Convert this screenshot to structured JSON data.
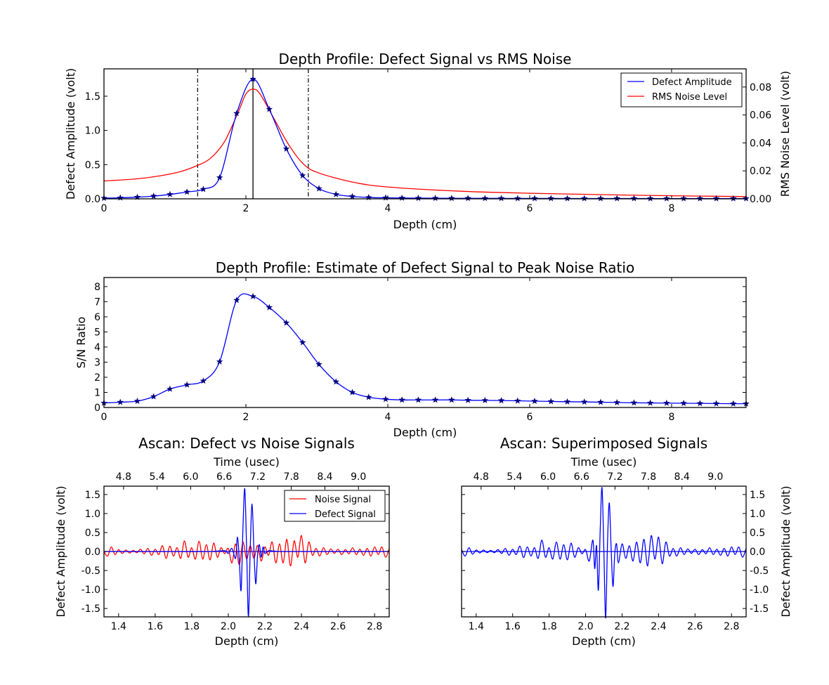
{
  "chart_data": [
    {
      "type": "line",
      "title": "Depth Profile: Defect Signal vs RMS Noise",
      "xlabel": "Depth (cm)",
      "ylabel": "Defect Amplitude (volt)",
      "y2label": "RMS Noise Level (volt)",
      "xlim": [
        0,
        9.05
      ],
      "ylim": [
        0,
        1.9
      ],
      "y2lim": [
        0,
        0.093
      ],
      "xticks": [
        0,
        2,
        4,
        6,
        8
      ],
      "yticks": [
        0.0,
        0.5,
        1.0,
        1.5
      ],
      "y2ticks": [
        0.0,
        0.02,
        0.04,
        0.06,
        0.08
      ],
      "legend_position": "top-right",
      "grid": false,
      "vertical_lines": {
        "solid": [
          2.1
        ],
        "dashdot": [
          1.32,
          2.88
        ]
      },
      "series": [
        {
          "name": "Defect Amplitude",
          "color": "#0000ff",
          "axis": "left",
          "marker": "star",
          "x": [
            0.0,
            0.23,
            0.47,
            0.7,
            0.93,
            1.17,
            1.4,
            1.63,
            1.87,
            2.1,
            2.33,
            2.57,
            2.8,
            3.03,
            3.27,
            3.5,
            3.73,
            3.97,
            4.2,
            4.43,
            4.67,
            4.9,
            5.13,
            5.37,
            5.6,
            5.83,
            6.07,
            6.3,
            6.53,
            6.77,
            7.0,
            7.23,
            7.47,
            7.7,
            7.93,
            8.17,
            8.4,
            8.63,
            8.87,
            9.05
          ],
          "y": [
            0.01,
            0.015,
            0.025,
            0.04,
            0.065,
            0.1,
            0.14,
            0.31,
            1.25,
            1.75,
            1.31,
            0.73,
            0.34,
            0.15,
            0.065,
            0.035,
            0.02,
            0.015,
            0.012,
            0.01,
            0.009,
            0.008,
            0.008,
            0.007,
            0.007,
            0.006,
            0.006,
            0.006,
            0.005,
            0.005,
            0.005,
            0.005,
            0.005,
            0.004,
            0.004,
            0.004,
            0.004,
            0.004,
            0.004,
            0.004
          ]
        },
        {
          "name": "RMS Noise Level",
          "color": "#ff0000",
          "axis": "right",
          "x": [
            0.0,
            0.5,
            1.0,
            1.3,
            1.5,
            1.7,
            1.9,
            2.0,
            2.1,
            2.2,
            2.4,
            2.6,
            2.8,
            3.0,
            3.5,
            4.0,
            5.0,
            6.0,
            7.0,
            8.0,
            9.05
          ],
          "y": [
            0.0128,
            0.0145,
            0.0185,
            0.0235,
            0.029,
            0.041,
            0.063,
            0.075,
            0.0785,
            0.075,
            0.057,
            0.039,
            0.0255,
            0.019,
            0.012,
            0.0085,
            0.0055,
            0.004,
            0.003,
            0.0022,
            0.0016
          ]
        }
      ]
    },
    {
      "type": "line",
      "title": "Depth Profile: Estimate of Defect Signal to Peak Noise Ratio",
      "xlabel": "Depth (cm)",
      "ylabel": "S/N Ratio",
      "xlim": [
        0,
        9.05
      ],
      "ylim": [
        0,
        8.6
      ],
      "xticks": [
        0,
        2,
        4,
        6,
        8
      ],
      "yticks": [
        0,
        1,
        2,
        3,
        4,
        5,
        6,
        7,
        8
      ],
      "grid": false,
      "series": [
        {
          "color": "#0000ff",
          "marker": "star",
          "x": [
            0.0,
            0.23,
            0.47,
            0.7,
            0.93,
            1.17,
            1.4,
            1.63,
            1.87,
            2.1,
            2.33,
            2.57,
            2.8,
            3.03,
            3.27,
            3.5,
            3.73,
            3.97,
            4.2,
            4.43,
            4.67,
            4.9,
            5.13,
            5.37,
            5.6,
            5.83,
            6.07,
            6.3,
            6.53,
            6.77,
            7.0,
            7.23,
            7.47,
            7.7,
            7.93,
            8.17,
            8.4,
            8.63,
            8.87,
            9.05
          ],
          "y": [
            0.3,
            0.35,
            0.42,
            0.72,
            1.22,
            1.5,
            1.76,
            3.03,
            7.1,
            7.35,
            6.62,
            5.6,
            4.3,
            2.85,
            1.7,
            1.0,
            0.68,
            0.55,
            0.5,
            0.5,
            0.5,
            0.5,
            0.48,
            0.47,
            0.46,
            0.44,
            0.42,
            0.4,
            0.38,
            0.37,
            0.35,
            0.33,
            0.31,
            0.3,
            0.29,
            0.28,
            0.27,
            0.26,
            0.25,
            0.25
          ]
        }
      ]
    },
    {
      "type": "line",
      "title": "Ascan: Defect vs Noise Signals",
      "xlabel": "Depth (cm)",
      "x2label": "Time (usec)",
      "ylabel": "Defect Amplitude (volt)",
      "xlim": [
        1.32,
        2.88
      ],
      "ylim": [
        -1.72,
        1.72
      ],
      "xticks": [
        1.4,
        1.6,
        1.8,
        2.0,
        2.2,
        2.4,
        2.6,
        2.8
      ],
      "x2ticks": [
        4.8,
        5.4,
        6.0,
        6.6,
        7.2,
        7.8,
        8.4,
        9.0
      ],
      "yticks": [
        -1.5,
        -1.0,
        -0.5,
        0.0,
        0.5,
        1.0,
        1.5
      ],
      "legend_position": "top-right",
      "series": [
        {
          "name": "Noise Signal",
          "color": "#ff0000",
          "x": [
            1.32,
            1.34,
            1.36,
            1.38,
            1.4,
            1.42,
            1.44,
            1.46,
            1.48,
            1.5,
            1.52,
            1.54,
            1.56,
            1.58,
            1.6,
            1.62,
            1.64,
            1.66,
            1.68,
            1.7,
            1.72,
            1.74,
            1.76,
            1.78,
            1.8,
            1.82,
            1.84,
            1.86,
            1.88,
            1.9,
            1.92,
            1.94,
            1.96,
            1.98,
            2.0,
            2.02,
            2.04,
            2.06,
            2.08,
            2.1,
            2.12,
            2.14,
            2.16,
            2.18,
            2.2,
            2.22,
            2.24,
            2.26,
            2.28,
            2.3,
            2.32,
            2.34,
            2.36,
            2.38,
            2.4,
            2.42,
            2.44,
            2.46,
            2.48,
            2.5,
            2.52,
            2.54,
            2.56,
            2.58,
            2.6,
            2.62,
            2.64,
            2.66,
            2.68,
            2.7,
            2.72,
            2.74,
            2.76,
            2.78,
            2.8,
            2.82,
            2.84,
            2.86,
            2.88
          ],
          "y": [
            0.0,
            -0.12,
            0.12,
            -0.08,
            0.05,
            -0.05,
            0.04,
            -0.04,
            0.03,
            -0.03,
            0.06,
            -0.06,
            0.08,
            -0.1,
            0.06,
            -0.08,
            0.15,
            -0.18,
            0.14,
            -0.12,
            0.1,
            -0.18,
            0.28,
            -0.15,
            0.1,
            -0.2,
            0.27,
            -0.2,
            0.18,
            -0.22,
            0.22,
            -0.15,
            0.1,
            -0.06,
            0.08,
            -0.3,
            0.2,
            -0.35,
            0.25,
            -0.2,
            0.15,
            -0.18,
            0.16,
            -0.25,
            0.12,
            -0.1,
            0.25,
            -0.3,
            0.2,
            -0.3,
            0.32,
            -0.38,
            0.28,
            -0.15,
            0.42,
            -0.3,
            0.25,
            -0.1,
            0.08,
            -0.12,
            0.1,
            -0.08,
            0.07,
            -0.05,
            0.06,
            -0.08,
            0.05,
            -0.06,
            0.1,
            -0.08,
            0.06,
            -0.1,
            0.08,
            -0.12,
            0.12,
            -0.08,
            0.12,
            -0.15,
            0.08
          ]
        },
        {
          "name": "Defect Signal",
          "color": "#0000ff",
          "x": [
            1.32,
            1.5,
            1.7,
            1.9,
            1.98,
            2.0,
            2.02,
            2.04,
            2.05,
            2.06,
            2.07,
            2.08,
            2.09,
            2.1,
            2.11,
            2.12,
            2.13,
            2.14,
            2.15,
            2.16,
            2.17,
            2.18,
            2.19,
            2.2,
            2.22,
            2.25,
            2.3,
            2.5,
            2.88
          ],
          "y": [
            0.0,
            0.0,
            0.0,
            0.0,
            0.02,
            -0.05,
            0.08,
            -0.18,
            0.38,
            -0.2,
            -1.02,
            0.6,
            1.65,
            0.1,
            -1.72,
            0.1,
            1.25,
            0.05,
            -0.85,
            -0.1,
            0.18,
            -0.15,
            0.12,
            -0.05,
            0.02,
            0.01,
            0.0,
            0.0,
            0.0
          ]
        }
      ]
    },
    {
      "type": "line",
      "title": "Ascan: Superimposed Signals",
      "xlabel": "Depth (cm)",
      "x2label": "Time (usec)",
      "ylabel": "Defect Amplitude (volt)",
      "xlim": [
        1.32,
        2.88
      ],
      "ylim": [
        -1.72,
        1.72
      ],
      "xticks": [
        1.4,
        1.6,
        1.8,
        2.0,
        2.2,
        2.4,
        2.6,
        2.8
      ],
      "x2ticks": [
        4.8,
        5.4,
        6.0,
        6.6,
        7.2,
        7.8,
        8.4,
        9.0
      ],
      "yticks": [
        -1.5,
        -1.0,
        -0.5,
        0.0,
        0.5,
        1.0,
        1.5
      ],
      "series": [
        {
          "color": "#0000ff",
          "x": [
            1.32,
            1.34,
            1.36,
            1.38,
            1.4,
            1.42,
            1.44,
            1.46,
            1.48,
            1.5,
            1.52,
            1.54,
            1.56,
            1.58,
            1.6,
            1.62,
            1.64,
            1.66,
            1.68,
            1.7,
            1.72,
            1.74,
            1.76,
            1.78,
            1.8,
            1.82,
            1.84,
            1.86,
            1.88,
            1.9,
            1.92,
            1.94,
            1.96,
            1.98,
            2.0,
            2.02,
            2.04,
            2.05,
            2.06,
            2.07,
            2.08,
            2.09,
            2.1,
            2.11,
            2.12,
            2.13,
            2.14,
            2.15,
            2.16,
            2.17,
            2.18,
            2.2,
            2.22,
            2.24,
            2.26,
            2.28,
            2.3,
            2.32,
            2.34,
            2.36,
            2.38,
            2.4,
            2.42,
            2.44,
            2.46,
            2.48,
            2.5,
            2.52,
            2.54,
            2.56,
            2.58,
            2.6,
            2.62,
            2.64,
            2.66,
            2.68,
            2.7,
            2.72,
            2.74,
            2.76,
            2.78,
            2.8,
            2.82,
            2.84,
            2.86,
            2.88
          ],
          "y": [
            0.05,
            -0.12,
            0.1,
            -0.07,
            0.04,
            -0.04,
            0.04,
            -0.03,
            0.03,
            -0.03,
            0.05,
            -0.05,
            0.08,
            -0.1,
            0.06,
            -0.08,
            0.14,
            -0.16,
            0.12,
            -0.12,
            0.1,
            -0.18,
            0.3,
            -0.15,
            0.1,
            -0.2,
            0.25,
            -0.2,
            0.18,
            -0.22,
            0.22,
            -0.15,
            0.1,
            -0.06,
            0.05,
            -0.25,
            0.3,
            -0.45,
            0.15,
            -1.02,
            0.55,
            1.68,
            0.05,
            -1.75,
            0.2,
            1.28,
            0.08,
            -0.92,
            -0.05,
            0.2,
            -0.3,
            0.2,
            -0.18,
            0.15,
            -0.25,
            0.25,
            -0.3,
            0.32,
            -0.38,
            0.42,
            -0.2,
            0.38,
            -0.32,
            0.25,
            -0.12,
            0.08,
            -0.12,
            0.1,
            -0.08,
            0.07,
            -0.05,
            0.06,
            -0.08,
            0.05,
            -0.06,
            0.1,
            -0.08,
            0.06,
            -0.1,
            0.08,
            -0.12,
            0.12,
            -0.08,
            0.12,
            -0.15,
            0.08
          ]
        }
      ]
    }
  ]
}
